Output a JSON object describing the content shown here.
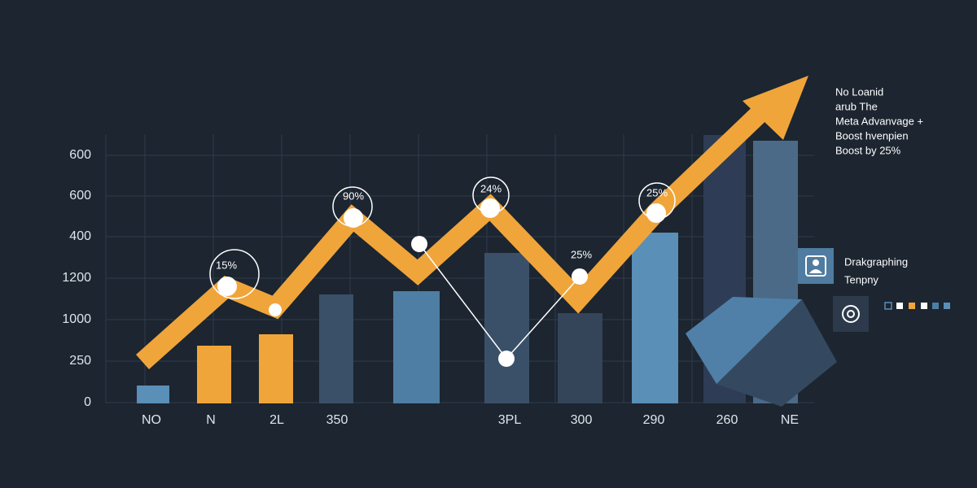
{
  "axis": {
    "y_labels": [
      "600",
      "600",
      "400",
      "1200",
      "1000",
      "250",
      "0"
    ],
    "x_labels": [
      "NO",
      "N",
      "2L",
      "350",
      "3PL",
      "300",
      "290",
      "260",
      "NE"
    ]
  },
  "point_labels": [
    "15%",
    "90%",
    "24%",
    "25%",
    "25%"
  ],
  "note": [
    "No Loanid",
    "arub The",
    "Meta Advanvage +",
    "Boost hvenpien",
    "Boost by 25%"
  ],
  "panel": {
    "title": "Drakgraphing",
    "subtitle": "Tenpny"
  }
}
